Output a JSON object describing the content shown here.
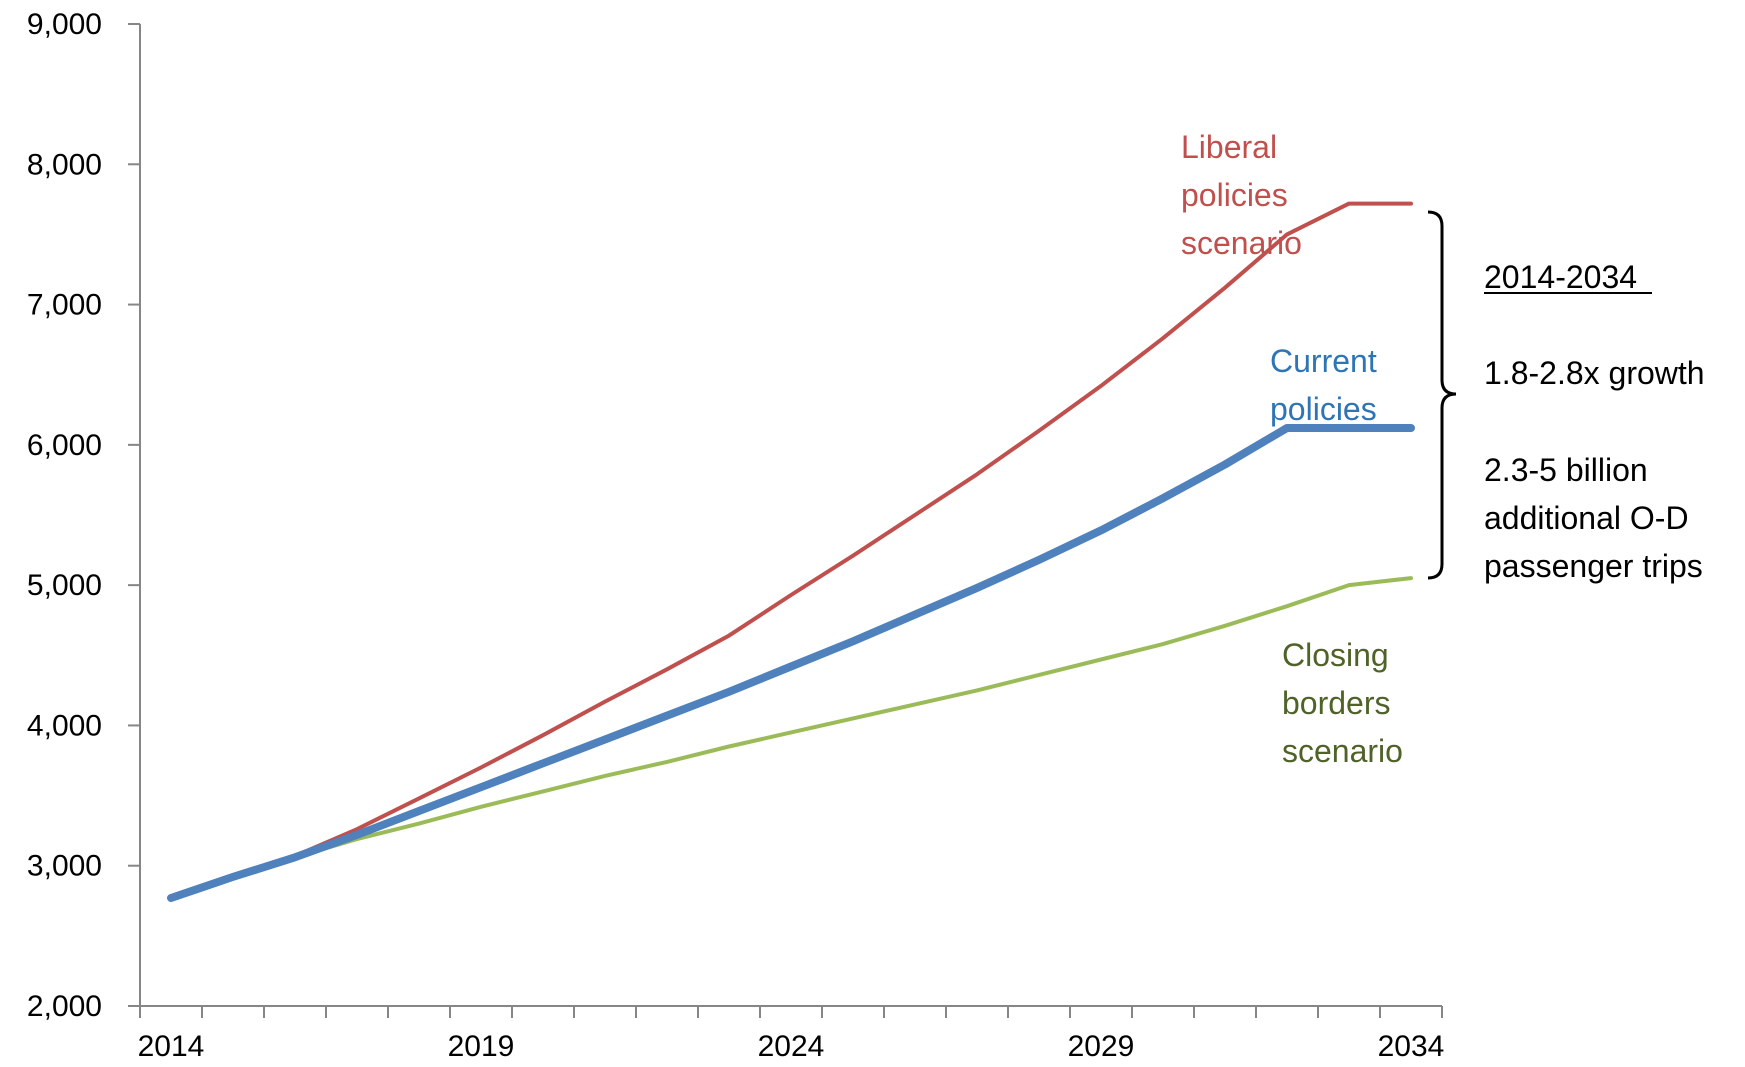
{
  "chart_data": {
    "type": "line",
    "title": "",
    "xlabel": "",
    "ylabel": "",
    "x": [
      2014,
      2015,
      2016,
      2017,
      2018,
      2019,
      2020,
      2021,
      2022,
      2023,
      2024,
      2025,
      2026,
      2027,
      2028,
      2029,
      2030,
      2031,
      2032,
      2033,
      2034
    ],
    "xlim": [
      2013.5,
      2034.5
    ],
    "ylim": [
      2000,
      9000
    ],
    "x_ticks": [
      2014,
      2019,
      2024,
      2029,
      2034
    ],
    "x_tick_labels": [
      "2014",
      "2019",
      "2024",
      "2029",
      "2034"
    ],
    "y_ticks": [
      2000,
      3000,
      4000,
      5000,
      6000,
      7000,
      8000,
      9000
    ],
    "y_tick_labels": [
      "2,000",
      "3,000",
      "4,000",
      "5,000",
      "6,000",
      "7,000",
      "8,000",
      "9,000"
    ],
    "grid": false,
    "legend": "none",
    "series": [
      {
        "name": "Liberal policies scenario",
        "color": "#c0504d",
        "values": [
          2770,
          2930,
          3070,
          3260,
          3480,
          3700,
          3930,
          4170,
          4400,
          4640,
          4930,
          5210,
          5500,
          5790,
          6100,
          6420,
          6760,
          7120,
          7500,
          7720,
          7720
        ]
      },
      {
        "name": "Current policies",
        "color": "#4f81bd",
        "values": [
          2770,
          2920,
          3060,
          3220,
          3390,
          3560,
          3730,
          3900,
          4070,
          4240,
          4420,
          4600,
          4790,
          4980,
          5180,
          5390,
          5620,
          5860,
          6120,
          6120,
          6120
        ]
      },
      {
        "name": "Closing borders scenario",
        "color": "#9bbb59",
        "values": [
          2770,
          2920,
          3060,
          3190,
          3300,
          3420,
          3530,
          3640,
          3740,
          3850,
          3950,
          4050,
          4150,
          4250,
          4360,
          4470,
          4580,
          4710,
          4850,
          5000,
          5050
        ]
      }
    ],
    "annotations": {
      "liberal_label": [
        "Liberal",
        "policies",
        "scenario"
      ],
      "current_label": [
        "Current",
        "policies"
      ],
      "closing_label": [
        "Closing",
        "borders",
        "scenario"
      ],
      "range_heading": "2014-2034",
      "growth": "1.8-2.8x growth",
      "trips": [
        "2.3-5 billion",
        "additional  O-D",
        "passenger trips"
      ]
    }
  }
}
